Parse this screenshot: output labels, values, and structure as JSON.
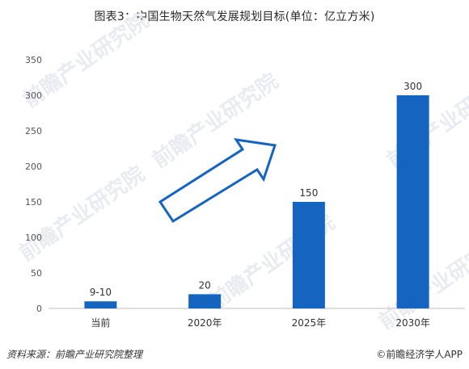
{
  "page": {
    "title": "图表3：中国生物天然气发展规划目标(单位：亿立方米)",
    "source": "资料来源：前瞻产业研究院整理",
    "brand": "©前瞻经济学人APP",
    "watermark": "前瞻产业研究院"
  },
  "colors": {
    "bar": "#1565C0",
    "arrow": "#1565C0",
    "axis": "#bfbfbf"
  },
  "chart_data": {
    "type": "bar",
    "categories": [
      "当前",
      "2020年",
      "2025年",
      "2030年"
    ],
    "values": [
      10,
      20,
      150,
      300
    ],
    "data_labels": [
      "9-10",
      "20",
      "150",
      "300"
    ],
    "ylim": [
      0,
      350
    ],
    "yticks": [
      0,
      50,
      100,
      150,
      200,
      250,
      300,
      350
    ],
    "grid": false
  }
}
